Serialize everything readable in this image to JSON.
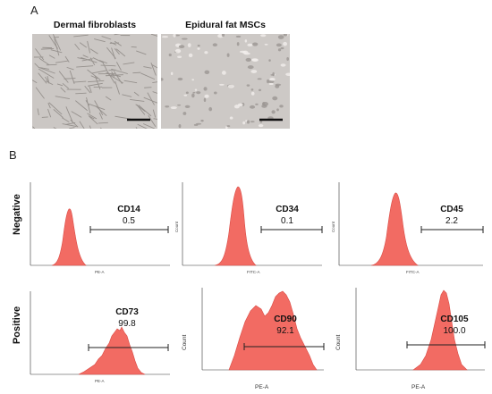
{
  "panels": {
    "a_label": "A",
    "b_label": "B"
  },
  "micrographs": [
    {
      "title": "Dermal fibroblasts"
    },
    {
      "title": "Epidural fat MSCs"
    }
  ],
  "row_labels": {
    "negative": "Negative",
    "positive": "Positive"
  },
  "histograms": [
    {
      "marker": "CD14",
      "percent": "0.5",
      "xlabel": "PE-A",
      "ylabel": "",
      "percent_value": 0.5
    },
    {
      "marker": "CD34",
      "percent": "0.1",
      "xlabel": "FITC-A",
      "ylabel": "Count",
      "percent_value": 0.1
    },
    {
      "marker": "CD45",
      "percent": "2.2",
      "xlabel": "FITC-A",
      "ylabel": "Count",
      "percent_value": 2.2
    },
    {
      "marker": "CD73",
      "percent": "99.8",
      "xlabel": "PE-A",
      "ylabel": "",
      "percent_value": 99.8
    },
    {
      "marker": "CD90",
      "percent": "92.1",
      "xlabel": "PE-A",
      "ylabel": "Count",
      "percent_value": 92.1
    },
    {
      "marker": "CD105",
      "percent": "100.0",
      "xlabel": "PE-A",
      "ylabel": "Count",
      "percent_value": 100.0
    }
  ],
  "colors": {
    "histogram_fill": "#f26b63",
    "histogram_stroke": "#d94b45",
    "gate_line": "#222222",
    "micro_bg": "#c9c5c2"
  }
}
